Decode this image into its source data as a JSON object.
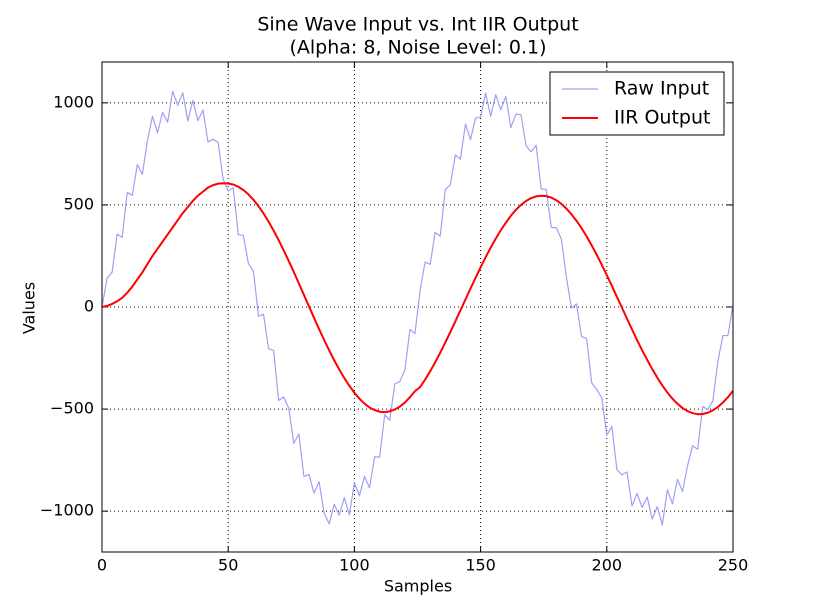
{
  "chart_data": {
    "type": "line",
    "title": "Sine Wave Input vs. Int IIR Output",
    "subtitle": "(Alpha: 8, Noise Level: 0.1)",
    "x_label": "Samples",
    "y_label": "Values",
    "xlim": [
      0,
      250
    ],
    "ylim": [
      -1200,
      1200
    ],
    "xticks": [
      0,
      50,
      100,
      150,
      200,
      250
    ],
    "yticks": [
      {
        "value": -1000,
        "label": "−1000"
      },
      {
        "value": -500,
        "label": "−500"
      },
      0,
      500,
      1000
    ],
    "grid": true,
    "legend": "upper right",
    "x": [
      0,
      2,
      4,
      6,
      8,
      10,
      12,
      14,
      16,
      18,
      20,
      22,
      24,
      26,
      28,
      30,
      32,
      34,
      36,
      38,
      40,
      42,
      44,
      46,
      48,
      50,
      52,
      54,
      56,
      58,
      60,
      62,
      64,
      66,
      68,
      70,
      72,
      74,
      76,
      78,
      80,
      82,
      84,
      86,
      88,
      90,
      92,
      94,
      96,
      98,
      100,
      102,
      104,
      106,
      108,
      110,
      112,
      114,
      116,
      118,
      120,
      122,
      124,
      126,
      128,
      130,
      132,
      134,
      136,
      138,
      140,
      142,
      144,
      146,
      148,
      150,
      152,
      154,
      156,
      158,
      160,
      162,
      164,
      166,
      168,
      170,
      172,
      174,
      176,
      178,
      180,
      182,
      184,
      186,
      188,
      190,
      192,
      194,
      196,
      198,
      200,
      202,
      204,
      206,
      208,
      210,
      212,
      214,
      216,
      218,
      220,
      222,
      224,
      226,
      228,
      230,
      232,
      234,
      236,
      238,
      240,
      242,
      244,
      246,
      248,
      250
    ],
    "series": [
      {
        "name": "Raw Input",
        "color": "#9f9ff5",
        "values": [
          0,
          140,
          170,
          357,
          341,
          562,
          547,
          697,
          650,
          816,
          934,
          854,
          954,
          905,
          1057,
          988,
          1049,
          911,
          1012,
          913,
          965,
          808,
          822,
          807,
          626,
          568,
          584,
          354,
          351,
          214,
          175,
          -45,
          -35,
          -205,
          -213,
          -458,
          -440,
          -496,
          -668,
          -622,
          -830,
          -820,
          -912,
          -855,
          -1009,
          -1062,
          -966,
          -1020,
          -934,
          -1017,
          -861,
          -925,
          -830,
          -886,
          -734,
          -735,
          -528,
          -555,
          -377,
          -365,
          -309,
          -110,
          -130,
          80,
          220,
          209,
          365,
          347,
          575,
          598,
          745,
          724,
          896,
          820,
          925,
          931,
          1047,
          934,
          1040,
          966,
          1032,
          879,
          945,
          942,
          790,
          760,
          792,
          578,
          576,
          390,
          388,
          333,
          145,
          -5,
          15,
          -145,
          -154,
          -371,
          -404,
          -444,
          -628,
          -586,
          -797,
          -822,
          -808,
          -975,
          -913,
          -982,
          -931,
          -1039,
          -978,
          -1067,
          -895,
          -964,
          -844,
          -904,
          -776,
          -680,
          -697,
          -487,
          -502,
          -461,
          -267,
          -140,
          -140,
          10
        ]
      },
      {
        "name": "IIR Output",
        "color": "#ff0000",
        "values": [
          0,
          5,
          15,
          28,
          45,
          70,
          100,
          135,
          170,
          210,
          250,
          285,
          320,
          355,
          390,
          425,
          460,
          490,
          520,
          545,
          565,
          585,
          597,
          604,
          606,
          605,
          600,
          589,
          573,
          552,
          525,
          494,
          458,
          418,
          374,
          327,
          277,
          225,
          171,
          115,
          59,
          3,
          -53,
          -108,
          -161,
          -212,
          -261,
          -306,
          -348,
          -386,
          -420,
          -449,
          -473,
          -492,
          -505,
          -513,
          -515,
          -511,
          -502,
          -488,
          -468,
          -442,
          -412,
          -393,
          -356,
          -315,
          -271,
          -224,
          -174,
          -123,
          -70,
          -17,
          37,
          90,
          143,
          194,
          244,
          291,
          335,
          376,
          413,
          447,
          476,
          500,
          519,
          533,
          542,
          545,
          543,
          536,
          523,
          505,
          482,
          454,
          422,
          386,
          346,
          302,
          256,
          207,
          156,
          104,
          50,
          -3,
          -57,
          -110,
          -162,
          -212,
          -259,
          -304,
          -346,
          -384,
          -419,
          -449,
          -474,
          -495,
          -510,
          -520,
          -525,
          -524,
          -518,
          -506,
          -490,
          -468,
          -442,
          -411
        ]
      }
    ]
  }
}
